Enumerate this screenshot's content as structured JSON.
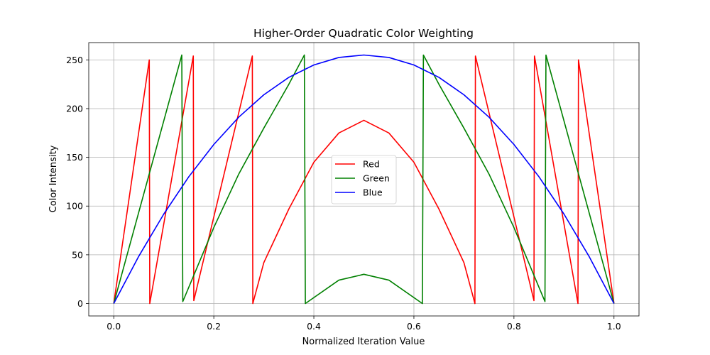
{
  "chart_data": {
    "type": "line",
    "title": "Higher-Order Quadratic Color Weighting",
    "xlabel": "Normalized Iteration Value",
    "ylabel": "Color Intensity",
    "xlim": [
      -0.05,
      1.05
    ],
    "ylim": [
      -12.75,
      267.75
    ],
    "x_ticks": [
      0.0,
      0.2,
      0.4,
      0.6,
      0.8,
      1.0
    ],
    "x_tick_labels": [
      "0.0",
      "0.2",
      "0.4",
      "0.6",
      "0.8",
      "1.0"
    ],
    "y_ticks": [
      0,
      50,
      100,
      150,
      200,
      250
    ],
    "y_tick_labels": [
      "0",
      "50",
      "100",
      "150",
      "200",
      "250"
    ],
    "grid": true,
    "legend_position": "center",
    "series": [
      {
        "name": "Red",
        "color": "#ff0000",
        "x": [
          0.0,
          0.071,
          0.072,
          0.159,
          0.16,
          0.277,
          0.278,
          0.3,
          0.35,
          0.4,
          0.45,
          0.5,
          0.55,
          0.6,
          0.65,
          0.7,
          0.722,
          0.723,
          0.84,
          0.841,
          0.928,
          0.929,
          1.0
        ],
        "y": [
          0,
          250,
          0,
          254,
          3,
          254,
          0,
          42,
          97,
          145,
          175,
          188,
          175,
          145,
          97,
          42,
          0,
          254,
          3,
          254,
          0,
          250,
          0
        ]
      },
      {
        "name": "Green",
        "color": "#008000",
        "x": [
          0.0,
          0.136,
          0.138,
          0.2,
          0.25,
          0.3,
          0.35,
          0.381,
          0.383,
          0.45,
          0.5,
          0.55,
          0.617,
          0.619,
          0.65,
          0.7,
          0.75,
          0.8,
          0.862,
          0.864,
          1.0
        ],
        "y": [
          0,
          255,
          2,
          78,
          133,
          180,
          225,
          255,
          0,
          24,
          30,
          24,
          0,
          255,
          225,
          180,
          133,
          78,
          2,
          255,
          0
        ]
      },
      {
        "name": "Blue",
        "color": "#0000ff",
        "x": [
          0.0,
          0.05,
          0.1,
          0.15,
          0.2,
          0.25,
          0.3,
          0.35,
          0.4,
          0.45,
          0.5,
          0.55,
          0.6,
          0.65,
          0.7,
          0.75,
          0.8,
          0.85,
          0.9,
          0.95,
          1.0
        ],
        "y": [
          0,
          48.5,
          91.8,
          130.1,
          163.2,
          191.3,
          214.2,
          232.1,
          244.8,
          252.5,
          255,
          252.5,
          244.8,
          232.1,
          214.2,
          191.3,
          163.2,
          130.1,
          91.8,
          48.5,
          0
        ]
      }
    ]
  }
}
